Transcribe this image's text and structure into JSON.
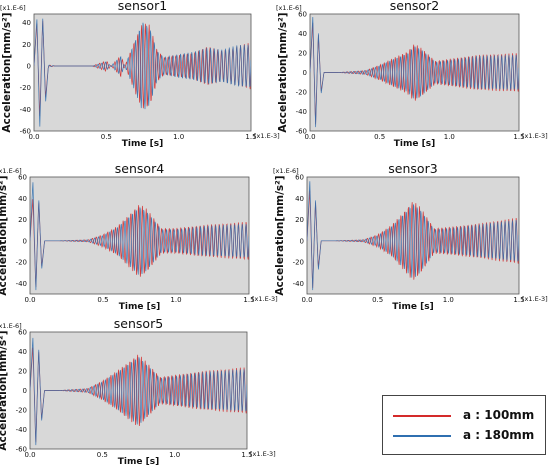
{
  "colors": {
    "plot_bg": "#d8d8d8",
    "series_a": "#d42a2a",
    "series_b": "#2f6fb0",
    "axis": "#555555"
  },
  "legend": {
    "items": [
      {
        "label": "a : 100mm",
        "color": "#d42a2a"
      },
      {
        "label": "a : 180mm",
        "color": "#2f6fb0"
      }
    ]
  },
  "chart_data": [
    {
      "type": "line",
      "title": "sensor1",
      "xlabel": "Time [s]",
      "ylabel": "Acceleration[mm/s²]",
      "x_scale_label": "[x1.E-3]",
      "y_scale_label": "[x1.E-6]",
      "xlim": [
        0,
        1.5
      ],
      "ylim": [
        -60,
        48
      ],
      "x_ticks": [
        "0.0",
        "0.5",
        "1.0",
        "1.5"
      ],
      "y_ticks": [
        "40",
        "20",
        "0",
        "-20",
        "-40",
        "-60"
      ],
      "series": [
        {
          "name": "a : 100mm",
          "color": "#d42a2a",
          "x": [
            0.0,
            0.02,
            0.04,
            0.06,
            0.08,
            0.1,
            0.15,
            0.2,
            0.3,
            0.4,
            0.5,
            0.6,
            0.7,
            0.75,
            0.8,
            0.85,
            0.9,
            1.0,
            1.1,
            1.2,
            1.3,
            1.4,
            1.5
          ],
          "y": [
            0,
            40,
            -48,
            44,
            -30,
            1,
            0,
            0,
            0,
            0,
            5,
            -10,
            25,
            40,
            38,
            15,
            8,
            10,
            12,
            18,
            14,
            18,
            22
          ]
        },
        {
          "name": "a : 180mm",
          "color": "#2f6fb0",
          "x": [
            0.0,
            0.02,
            0.04,
            0.06,
            0.08,
            0.1,
            0.15,
            0.2,
            0.3,
            0.4,
            0.5,
            0.6,
            0.7,
            0.75,
            0.8,
            0.85,
            0.9,
            1.0,
            1.1,
            1.2,
            1.3,
            1.4,
            1.5
          ],
          "y": [
            0,
            44,
            -58,
            46,
            -34,
            1,
            0,
            0,
            0,
            0,
            4,
            -9,
            24,
            42,
            36,
            14,
            8,
            11,
            13,
            17,
            15,
            19,
            20
          ]
        }
      ]
    },
    {
      "type": "line",
      "title": "sensor2",
      "xlabel": "Time [s]",
      "ylabel": "Acceleration[mm/s²]",
      "x_scale_label": "[x1.E-3]",
      "y_scale_label": "[x1.E-6]",
      "xlim": [
        0,
        1.5
      ],
      "ylim": [
        -60,
        60
      ],
      "x_ticks": [
        "0.0",
        "0.5",
        "1.0",
        "1.5"
      ],
      "y_ticks": [
        "60",
        "40",
        "20",
        "0",
        "-20",
        "-40",
        "-60"
      ],
      "series": [
        {
          "name": "a : 100mm",
          "color": "#d42a2a",
          "x": [
            0.0,
            0.02,
            0.04,
            0.06,
            0.08,
            0.1,
            0.2,
            0.4,
            0.5,
            0.6,
            0.7,
            0.75,
            0.8,
            0.9,
            1.0,
            1.2,
            1.5
          ],
          "y": [
            0,
            52,
            -55,
            40,
            -20,
            0,
            0,
            2,
            8,
            15,
            22,
            30,
            25,
            12,
            14,
            18,
            20
          ]
        },
        {
          "name": "a : 180mm",
          "color": "#2f6fb0",
          "x": [
            0.0,
            0.02,
            0.04,
            0.06,
            0.08,
            0.1,
            0.2,
            0.4,
            0.5,
            0.6,
            0.7,
            0.75,
            0.8,
            0.9,
            1.0,
            1.2,
            1.5
          ],
          "y": [
            0,
            58,
            -58,
            42,
            -22,
            0,
            0,
            2,
            7,
            14,
            20,
            28,
            24,
            11,
            13,
            17,
            18
          ]
        }
      ]
    },
    {
      "type": "line",
      "title": "sensor4",
      "xlabel": "Time [s]",
      "ylabel": "Acceleration[mm/s²]",
      "x_scale_label": "[x1.E-3]",
      "y_scale_label": "[x1.E-6]",
      "xlim": [
        0,
        1.5
      ],
      "ylim": [
        -50,
        60
      ],
      "x_ticks": [
        "0.0",
        "0.5",
        "1.0",
        "1.5"
      ],
      "y_ticks": [
        "60",
        "40",
        "20",
        "0",
        "-20",
        "-40"
      ],
      "series": [
        {
          "name": "a : 100mm",
          "color": "#d42a2a",
          "x": [
            0.0,
            0.02,
            0.04,
            0.06,
            0.08,
            0.1,
            0.2,
            0.4,
            0.5,
            0.6,
            0.7,
            0.75,
            0.8,
            0.9,
            1.0,
            1.2,
            1.5
          ],
          "y": [
            0,
            40,
            -45,
            38,
            -25,
            0,
            0,
            1,
            6,
            14,
            28,
            35,
            30,
            12,
            12,
            15,
            18
          ]
        },
        {
          "name": "a : 180mm",
          "color": "#2f6fb0",
          "x": [
            0.0,
            0.02,
            0.04,
            0.06,
            0.08,
            0.1,
            0.2,
            0.4,
            0.5,
            0.6,
            0.7,
            0.75,
            0.8,
            0.9,
            1.0,
            1.2,
            1.5
          ],
          "y": [
            0,
            56,
            -48,
            40,
            -27,
            0,
            0,
            1,
            5,
            13,
            26,
            33,
            28,
            11,
            11,
            14,
            16
          ]
        }
      ]
    },
    {
      "type": "line",
      "title": "sensor3",
      "xlabel": "Time [s]",
      "ylabel": "Acceleration[mm/s²]",
      "x_scale_label": "[x1.E-3]",
      "y_scale_label": "[x1.E-6]",
      "xlim": [
        0,
        1.5
      ],
      "ylim": [
        -50,
        60
      ],
      "x_ticks": [
        "0.0",
        "0.5",
        "1.0",
        "1.5"
      ],
      "y_ticks": [
        "60",
        "40",
        "20",
        "0",
        "-20",
        "-40"
      ],
      "series": [
        {
          "name": "a : 100mm",
          "color": "#d42a2a",
          "x": [
            0.0,
            0.02,
            0.04,
            0.06,
            0.08,
            0.1,
            0.2,
            0.4,
            0.5,
            0.6,
            0.7,
            0.75,
            0.8,
            0.9,
            1.0,
            1.2,
            1.5
          ],
          "y": [
            0,
            48,
            -46,
            38,
            -26,
            0,
            0,
            1,
            6,
            15,
            30,
            38,
            32,
            12,
            13,
            16,
            22
          ]
        },
        {
          "name": "a : 180mm",
          "color": "#2f6fb0",
          "x": [
            0.0,
            0.02,
            0.04,
            0.06,
            0.08,
            0.1,
            0.2,
            0.4,
            0.5,
            0.6,
            0.7,
            0.75,
            0.8,
            0.9,
            1.0,
            1.2,
            1.5
          ],
          "y": [
            0,
            57,
            -48,
            40,
            -28,
            0,
            0,
            1,
            5,
            14,
            28,
            36,
            30,
            11,
            12,
            15,
            20
          ]
        }
      ]
    },
    {
      "type": "line",
      "title": "sensor5",
      "xlabel": "Time [s]",
      "ylabel": "Acceleration[mm/s²]",
      "x_scale_label": "[x1.E-3]",
      "y_scale_label": "[x1.E-6]",
      "xlim": [
        0,
        1.5
      ],
      "ylim": [
        -60,
        60
      ],
      "x_ticks": [
        "0.0",
        "0.5",
        "1.0",
        "1.5"
      ],
      "y_ticks": [
        "60",
        "40",
        "20",
        "0",
        "-20",
        "-40",
        "-60"
      ],
      "series": [
        {
          "name": "a : 100mm",
          "color": "#d42a2a",
          "x": [
            0.0,
            0.02,
            0.04,
            0.06,
            0.08,
            0.1,
            0.2,
            0.4,
            0.5,
            0.6,
            0.7,
            0.75,
            0.8,
            0.9,
            1.0,
            1.2,
            1.5
          ],
          "y": [
            0,
            45,
            -55,
            42,
            -30,
            0,
            0,
            2,
            10,
            20,
            32,
            38,
            30,
            14,
            16,
            20,
            24
          ]
        },
        {
          "name": "a : 180mm",
          "color": "#2f6fb0",
          "x": [
            0.0,
            0.02,
            0.04,
            0.06,
            0.08,
            0.1,
            0.2,
            0.4,
            0.5,
            0.6,
            0.7,
            0.75,
            0.8,
            0.9,
            1.0,
            1.2,
            1.5
          ],
          "y": [
            0,
            55,
            -58,
            44,
            -32,
            0,
            0,
            2,
            9,
            19,
            30,
            36,
            28,
            13,
            15,
            19,
            22
          ]
        }
      ]
    }
  ]
}
